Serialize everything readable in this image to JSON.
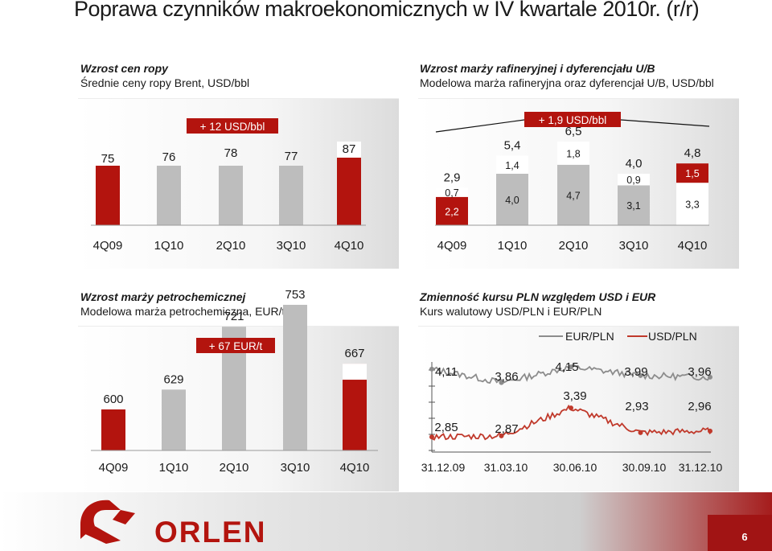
{
  "title": "Poprawa czynników makroekonomicznych w IV kwartale 2010r. (r/r)",
  "page_number": "6",
  "logo_text": "ORLEN",
  "colors": {
    "red": "#b3140e",
    "gray": "#bdbdbd",
    "white": "#ffffff",
    "line_red": "#c0392b",
    "line_gray": "#8c8c8c"
  },
  "panels": {
    "oil": {
      "title_bold": "Wzrost cen ropy",
      "subtitle": "Średnie ceny ropy Brent, USD/bbl",
      "badge": "+ 12 USD/bbl"
    },
    "margin": {
      "title_bold": "Wzrost marży rafineryjnej i dyferencjału U/B",
      "subtitle": "Modelowa marża rafineryjna oraz dyferencjał U/B, USD/bbl",
      "badge": "+ 1,9 USD/bbl"
    },
    "petro": {
      "title_bold": "Wzrost marży petrochemicznej",
      "subtitle": "Modelowa marża petrochemiczna, EUR/t",
      "badge": "+ 67 EUR/t"
    },
    "fx": {
      "title_bold": "Zmienność kursu PLN względem USD i EUR",
      "subtitle": "Kurs walutowy USD/PLN i EUR/PLN"
    }
  },
  "chart_data": [
    {
      "type": "bar",
      "categories": [
        "4Q09",
        "1Q10",
        "2Q10",
        "3Q10",
        "4Q10"
      ],
      "values": [
        75,
        76,
        78,
        77,
        87
      ],
      "labels": [
        "75",
        "76",
        "78",
        "77",
        "87"
      ]
    },
    {
      "type": "bar",
      "stacked": true,
      "categories": [
        "4Q09",
        "1Q10",
        "2Q10",
        "3Q10",
        "4Q10"
      ],
      "totals": [
        2.9,
        5.4,
        6.5,
        4.0,
        4.8
      ],
      "total_labels": [
        "2,9",
        "5,4",
        "6,5",
        "4,0",
        "4,8"
      ],
      "series": [
        {
          "values": [
            2.2,
            4.0,
            4.7,
            3.1,
            3.3
          ],
          "labels": [
            "2,2",
            "4,0",
            "4,7",
            "3,1",
            "3,3"
          ]
        },
        {
          "values": [
            0.7,
            1.4,
            1.8,
            0.9,
            1.5
          ],
          "labels": [
            "0,7",
            "1,4",
            "1,8",
            "0,9",
            "1,5"
          ]
        }
      ]
    },
    {
      "type": "bar",
      "categories": [
        "4Q09",
        "1Q10",
        "2Q10",
        "3Q10",
        "4Q10"
      ],
      "values": [
        600,
        629,
        721,
        753,
        667
      ],
      "labels": [
        "600",
        "629",
        "721",
        "753",
        "667"
      ]
    },
    {
      "type": "line",
      "x": [
        "31.12.09",
        "31.03.10",
        "30.06.10",
        "30.09.10",
        "31.12.10"
      ],
      "legend": [
        "EUR/PLN",
        "USD/PLN"
      ],
      "series": [
        {
          "name": "EUR/PLN",
          "values": [
            4.11,
            3.86,
            4.15,
            3.99,
            3.96
          ],
          "labels": [
            "4,11",
            "3,86",
            "4,15",
            "3,99",
            "3,96"
          ]
        },
        {
          "name": "USD/PLN",
          "values": [
            2.85,
            2.87,
            3.39,
            2.93,
            2.96
          ],
          "labels": [
            "2,85",
            "2,87",
            "3,39",
            "2,93",
            "2,96"
          ]
        }
      ]
    }
  ]
}
